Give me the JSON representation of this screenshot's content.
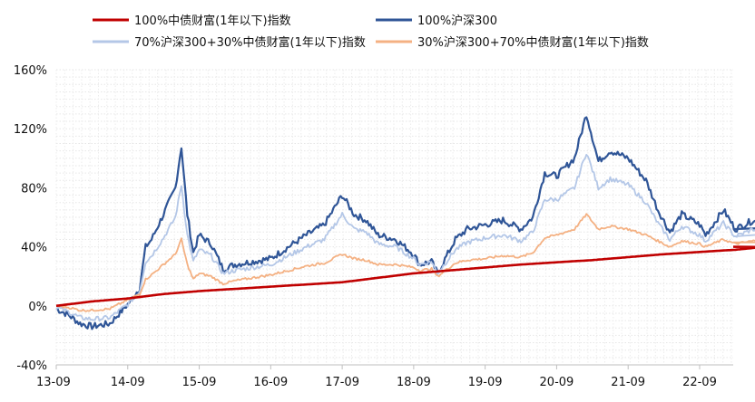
{
  "chart_data": {
    "type": "line",
    "title": "",
    "xlabel": "",
    "ylabel": "",
    "ylim": [
      -40,
      160
    ],
    "y_ticks": [
      -40,
      0,
      40,
      80,
      120,
      160
    ],
    "y_tick_labels": [
      "-40%",
      "0%",
      "40%",
      "80%",
      "120%",
      "160%"
    ],
    "x_tick_labels": [
      "13-09",
      "14-09",
      "15-09",
      "16-09",
      "17-09",
      "18-09",
      "19-09",
      "20-09",
      "21-09",
      "22-09"
    ],
    "grid": true,
    "legend_position": "top",
    "series": [
      {
        "name": "100%中债财富(1年以下)指数",
        "color": "#c00000",
        "x": [
          "2013-09",
          "2014-03",
          "2014-09",
          "2015-03",
          "2015-09",
          "2016-03",
          "2016-09",
          "2017-03",
          "2017-09",
          "2018-03",
          "2018-09",
          "2019-03",
          "2019-09",
          "2020-03",
          "2020-09",
          "2021-03",
          "2021-09",
          "2022-03",
          "2022-09",
          "2023-03",
          "2023-08"
        ],
        "values": [
          0,
          3,
          5,
          8,
          10,
          11.5,
          13,
          14.5,
          16,
          19,
          22,
          24,
          26,
          28,
          29.5,
          31,
          33,
          35,
          36.5,
          38,
          40
        ]
      },
      {
        "name": "100%沪深300",
        "color": "#2f5597",
        "x": [
          "2013-09",
          "2013-11",
          "2014-01",
          "2014-03",
          "2014-06",
          "2014-09",
          "2014-11",
          "2014-12",
          "2015-01",
          "2015-03",
          "2015-05",
          "2015-06",
          "2015-07",
          "2015-08",
          "2015-09",
          "2015-11",
          "2016-01",
          "2016-03",
          "2016-06",
          "2016-09",
          "2016-12",
          "2017-03",
          "2017-06",
          "2017-09",
          "2017-11",
          "2018-01",
          "2018-03",
          "2018-06",
          "2018-09",
          "2018-10",
          "2018-12",
          "2019-01",
          "2019-04",
          "2019-06",
          "2019-09",
          "2019-12",
          "2020-03",
          "2020-05",
          "2020-07",
          "2020-09",
          "2020-12",
          "2021-02",
          "2021-04",
          "2021-06",
          "2021-09",
          "2021-12",
          "2022-02",
          "2022-04",
          "2022-06",
          "2022-09",
          "2022-10",
          "2023-01",
          "2023-03",
          "2023-06",
          "2023-08"
        ],
        "values": [
          -2,
          -6,
          -12,
          -14,
          -12,
          1,
          12,
          40,
          45,
          62,
          80,
          108,
          62,
          36,
          48,
          42,
          25,
          28,
          30,
          32,
          40,
          48,
          55,
          75,
          62,
          58,
          48,
          45,
          35,
          28,
          30,
          22,
          45,
          52,
          55,
          58,
          52,
          60,
          90,
          88,
          100,
          130,
          98,
          105,
          100,
          85,
          65,
          50,
          62,
          55,
          48,
          65,
          52,
          58,
          52
        ]
      },
      {
        "name": "70%沪深300+30%中债财富(1年以下)指数",
        "color": "#b4c7e7",
        "x": [
          "2013-09",
          "2013-11",
          "2014-01",
          "2014-03",
          "2014-06",
          "2014-09",
          "2014-11",
          "2014-12",
          "2015-01",
          "2015-03",
          "2015-05",
          "2015-06",
          "2015-07",
          "2015-08",
          "2015-09",
          "2015-11",
          "2016-01",
          "2016-03",
          "2016-06",
          "2016-09",
          "2016-12",
          "2017-03",
          "2017-06",
          "2017-09",
          "2017-11",
          "2018-01",
          "2018-03",
          "2018-06",
          "2018-09",
          "2018-10",
          "2018-12",
          "2019-01",
          "2019-04",
          "2019-06",
          "2019-09",
          "2019-12",
          "2020-03",
          "2020-05",
          "2020-07",
          "2020-09",
          "2020-12",
          "2021-02",
          "2021-04",
          "2021-06",
          "2021-09",
          "2021-12",
          "2022-02",
          "2022-04",
          "2022-06",
          "2022-09",
          "2022-10",
          "2023-01",
          "2023-03",
          "2023-06",
          "2023-08"
        ],
        "values": [
          -1,
          -4,
          -8,
          -9,
          -8,
          1,
          10,
          30,
          34,
          46,
          60,
          82,
          48,
          30,
          38,
          34,
          22,
          24,
          26,
          28,
          34,
          40,
          45,
          62,
          52,
          50,
          42,
          40,
          32,
          28,
          30,
          22,
          38,
          43,
          46,
          48,
          44,
          50,
          72,
          72,
          80,
          104,
          80,
          86,
          82,
          70,
          56,
          45,
          54,
          48,
          44,
          56,
          47,
          52,
          47
        ]
      },
      {
        "name": "30%沪深300+70%中债财富(1年以下)指数",
        "color": "#f4b183",
        "x": [
          "2013-09",
          "2013-11",
          "2014-01",
          "2014-03",
          "2014-06",
          "2014-09",
          "2014-11",
          "2014-12",
          "2015-01",
          "2015-03",
          "2015-05",
          "2015-06",
          "2015-07",
          "2015-08",
          "2015-09",
          "2015-11",
          "2016-01",
          "2016-03",
          "2016-06",
          "2016-09",
          "2016-12",
          "2017-03",
          "2017-06",
          "2017-09",
          "2017-11",
          "2018-01",
          "2018-03",
          "2018-06",
          "2018-09",
          "2018-10",
          "2018-12",
          "2019-01",
          "2019-04",
          "2019-06",
          "2019-09",
          "2019-12",
          "2020-03",
          "2020-05",
          "2020-07",
          "2020-09",
          "2020-12",
          "2021-02",
          "2021-04",
          "2021-06",
          "2021-09",
          "2021-12",
          "2022-02",
          "2022-04",
          "2022-06",
          "2022-09",
          "2022-10",
          "2023-01",
          "2023-03",
          "2023-06",
          "2023-08"
        ],
        "values": [
          0,
          -1,
          -3,
          -3,
          -2,
          4,
          8,
          18,
          21,
          28,
          35,
          45,
          28,
          18,
          22,
          20,
          15,
          17,
          19,
          21,
          24,
          27,
          29,
          35,
          32,
          31,
          28,
          28,
          26,
          24,
          25,
          20,
          29,
          31,
          32,
          34,
          33,
          36,
          46,
          48,
          52,
          62,
          52,
          54,
          52,
          48,
          44,
          40,
          44,
          42,
          40,
          45,
          42,
          44,
          43
        ]
      }
    ]
  }
}
